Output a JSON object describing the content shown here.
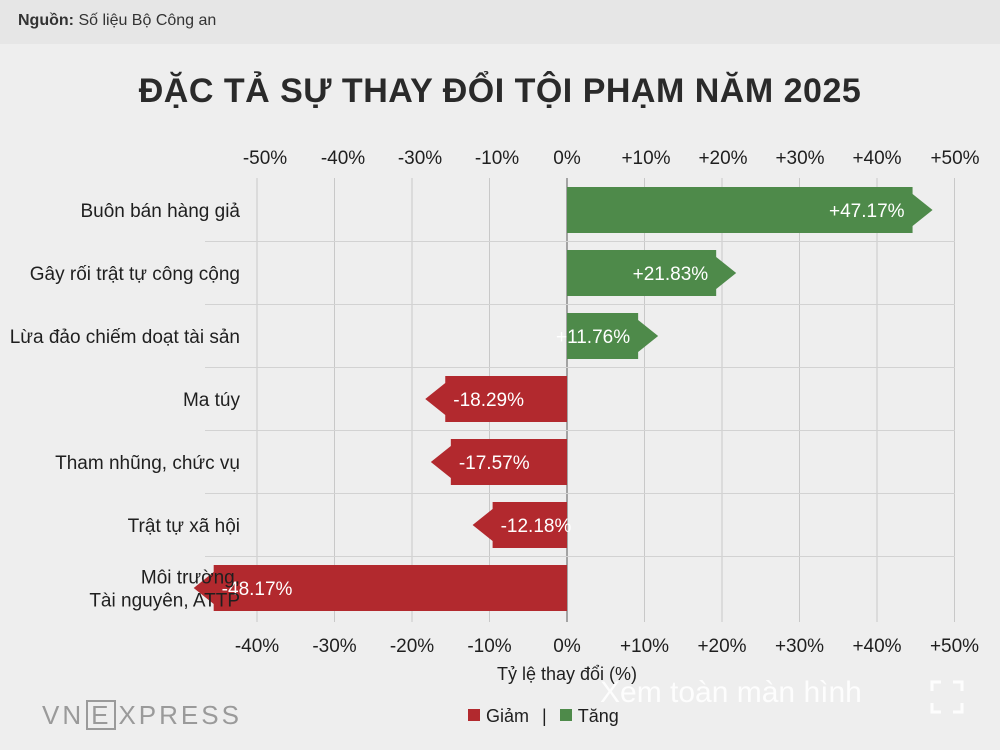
{
  "source": {
    "label": "Nguồn:",
    "text": "Số liệu Bộ Công an"
  },
  "colors": {
    "increase": "#4e8a4a",
    "decrease": "#b2292e"
  },
  "chart_data": {
    "type": "bar",
    "orientation": "horizontal",
    "title": "ĐẶC TẢ SỰ THAY ĐỔI TỘI PHẠM NĂM 2025",
    "xlabel": "Tỷ lệ thay đổi (%)",
    "xlim": [
      -50,
      50
    ],
    "grid": true,
    "top_ticks": [
      "-50%",
      "-40%",
      "-30%",
      "-10%",
      "0%",
      "+10%",
      "+20%",
      "+30%",
      "+40%",
      "+50%"
    ],
    "bottom_ticks": [
      "-40%",
      "-30%",
      "-20%",
      "-10%",
      "0%",
      "+10%",
      "+20%",
      "+30%",
      "+40%",
      "+50%"
    ],
    "categories": [
      [
        "Buôn bán hàng giả"
      ],
      [
        "Gây rối trật tự công cộng"
      ],
      [
        "Lừa đảo chiếm doạt tài sản"
      ],
      [
        "Ma túy"
      ],
      [
        "Tham nhũng, chức vụ"
      ],
      [
        "Trật tự xã hội"
      ],
      [
        "Môi trường,",
        "Tài nguyên, ATTP"
      ]
    ],
    "values": [
      47.17,
      21.83,
      11.76,
      -18.29,
      -17.57,
      -12.18,
      -48.17
    ],
    "labels": [
      "+47.17%",
      "+21.83%",
      "+11.76%",
      "-18.29%",
      "-17.57%",
      "-12.18%",
      "-48.17%"
    ],
    "legend": [
      {
        "name": "Giảm",
        "key": "decrease"
      },
      {
        "name": "Tăng",
        "key": "increase"
      }
    ],
    "legend_separator": "|"
  },
  "brand": {
    "left": "VN",
    "mid": "E",
    "right": "XPRESS"
  },
  "overlay": {
    "text": "Xem toàn màn hình",
    "icon": "fullscreen-icon"
  }
}
